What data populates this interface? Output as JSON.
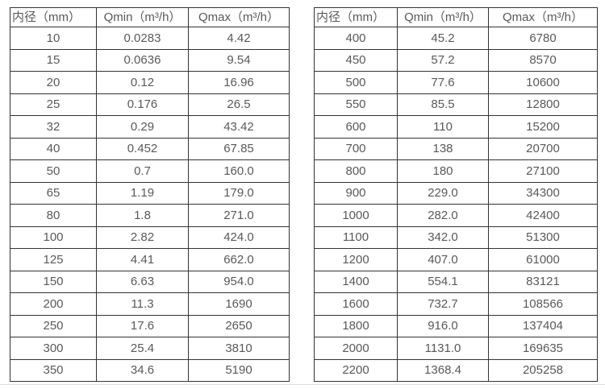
{
  "colors": {
    "border": "#333333",
    "text": "#595959",
    "page_rule": "#dcdcdc",
    "background": "#ffffff"
  },
  "tables": [
    {
      "name": "flow-table-small-diameters",
      "columns": [
        "内径（mm）",
        "Qmin（m³/h）",
        "Qmax（m³/h）"
      ],
      "rows": [
        [
          "10",
          "0.0283",
          "4.42"
        ],
        [
          "15",
          "0.0636",
          "9.54"
        ],
        [
          "20",
          "0.12",
          "16.96"
        ],
        [
          "25",
          "0.176",
          "26.5"
        ],
        [
          "32",
          "0.29",
          "43.42"
        ],
        [
          "40",
          "0.452",
          "67.85"
        ],
        [
          "50",
          "0.7",
          "160.0"
        ],
        [
          "65",
          "1.19",
          "179.0"
        ],
        [
          "80",
          "1.8",
          "271.0"
        ],
        [
          "100",
          "2.82",
          "424.0"
        ],
        [
          "125",
          "4.41",
          "662.0"
        ],
        [
          "150",
          "6.63",
          "954.0"
        ],
        [
          "200",
          "11.3",
          "1690"
        ],
        [
          "250",
          "17.6",
          "2650"
        ],
        [
          "300",
          "25.4",
          "3810"
        ],
        [
          "350",
          "34.6",
          "5190"
        ]
      ]
    },
    {
      "name": "flow-table-large-diameters",
      "columns": [
        "内径（mm）",
        "Qmin（m³/h）",
        "Qmax（m³/h）"
      ],
      "rows": [
        [
          "400",
          "45.2",
          "6780"
        ],
        [
          "450",
          "57.2",
          "8570"
        ],
        [
          "500",
          "77.6",
          "10600"
        ],
        [
          "550",
          "85.5",
          "12800"
        ],
        [
          "600",
          "110",
          "15200"
        ],
        [
          "700",
          "138",
          "20700"
        ],
        [
          "800",
          "180",
          "27100"
        ],
        [
          "900",
          "229.0",
          "34300"
        ],
        [
          "1000",
          "282.0",
          "42400"
        ],
        [
          "1100",
          "342.0",
          "51300"
        ],
        [
          "1200",
          "407.0",
          "61000"
        ],
        [
          "1400",
          "554.1",
          "83121"
        ],
        [
          "1600",
          "732.7",
          "108566"
        ],
        [
          "1800",
          "916.0",
          "137404"
        ],
        [
          "2000",
          "1131.0",
          "169635"
        ],
        [
          "2200",
          "1368.4",
          "205258"
        ]
      ]
    }
  ]
}
